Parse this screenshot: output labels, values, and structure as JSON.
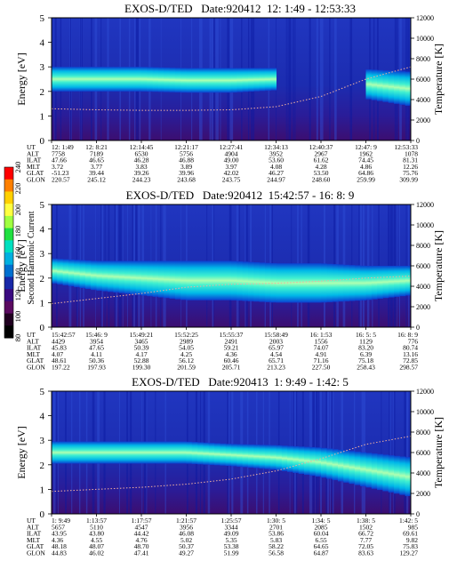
{
  "colorbar": {
    "title": "Second Harmonic Current",
    "ticks": [
      "240",
      "220",
      "200",
      "180",
      "160",
      "140",
      "120",
      "100",
      "80"
    ],
    "colors": [
      "#ff0000",
      "#ff8000",
      "#ffd000",
      "#ffff40",
      "#a0ff40",
      "#20e040",
      "#00e0c0",
      "#00b0e0",
      "#0070d0",
      "#1828a8",
      "#3a0a80",
      "#5a0a60",
      "#200020",
      "#000000"
    ]
  },
  "panels": [
    {
      "title": "EXOS-D/TED   Date:920412  12: 1:49 - 12:53:33",
      "ylabel": "Energy [eV]",
      "y2label": "Temperature [K]",
      "yticks": [
        "5",
        "4",
        "3",
        "2",
        "1",
        "0"
      ],
      "y2ticks": [
        "12000",
        "10000",
        "8000",
        "6000",
        "4000",
        "2000",
        "0"
      ],
      "rowlabels": [
        "UT",
        "ALT",
        "ILAT",
        "MLT",
        "GLAT",
        "GLON"
      ],
      "cols": [
        [
          "12: 1:49",
          "7758",
          "47.66",
          "3.72",
          "-51.23",
          "220.57"
        ],
        [
          "12: 8:21",
          "7189",
          "46.65",
          "3.77",
          "39.44",
          "245.12"
        ],
        [
          "12:14:45",
          "6530",
          "46.28",
          "3.83",
          "39.26",
          "244.23"
        ],
        [
          "12:21:17",
          "5756",
          "46.88",
          "3.89",
          "39.96",
          "243.68"
        ],
        [
          "12:27:41",
          "4904",
          "49.00",
          "3.97",
          "42.02",
          "243.75"
        ],
        [
          "12:34:13",
          "3952",
          "53.60",
          "4.08",
          "46.27",
          "244.97"
        ],
        [
          "12:40:37",
          "2967",
          "61.62",
          "4.28",
          "53.50",
          "248.60"
        ],
        [
          "12:47: 9",
          "1962",
          "74.45",
          "4.86",
          "64.86",
          "259.99"
        ],
        [
          "12:53:33",
          "1078",
          "81.31",
          "12.26",
          "75.76",
          "309.99"
        ]
      ],
      "chart_data": {
        "type": "heatmap",
        "x": [
          "12: 1:49",
          "12: 8:21",
          "12:14:45",
          "12:21:17",
          "12:27:41",
          "12:34:13",
          "12:40:37",
          "12:47: 9",
          "12:53:33"
        ],
        "ylim": [
          0,
          5
        ],
        "y2lim": [
          0,
          12000
        ],
        "band": {
          "center_eV": [
            2.5,
            2.5,
            2.5,
            2.45,
            2.45,
            2.5,
            null,
            2.3,
            2.1
          ],
          "width_eV": [
            1.0,
            1.0,
            1.0,
            1.0,
            1.0,
            0.9,
            0,
            1.2,
            1.4
          ]
        },
        "temperature_K": [
          3100,
          3000,
          2950,
          2950,
          3000,
          3300,
          4300,
          6000,
          7200
        ]
      }
    },
    {
      "title": "EXOS-D/TED   Date:920412  15:42:57 - 16: 8: 9",
      "ylabel": "Energy [eV]",
      "y2label": "Temperature [K]",
      "yticks": [
        "5",
        "4",
        "3",
        "2",
        "1",
        "0"
      ],
      "y2ticks": [
        "12000",
        "10000",
        "8000",
        "6000",
        "4000",
        "2000",
        "0"
      ],
      "rowlabels": [
        "UT",
        "ALT",
        "ILAT",
        "MLT",
        "GLAT",
        "GLON"
      ],
      "cols": [
        [
          "15:42:57",
          "4429",
          "45.83",
          "4.07",
          "48.61",
          "197.22"
        ],
        [
          "15:46: 9",
          "3954",
          "47.65",
          "4.11",
          "50.36",
          "197.93"
        ],
        [
          "15:49:21",
          "3465",
          "50.39",
          "4.17",
          "52.88",
          "199.30"
        ],
        [
          "15:52:25",
          "2989",
          "54.05",
          "4.25",
          "56.12",
          "201.59"
        ],
        [
          "15:55:37",
          "2491",
          "59.21",
          "4.36",
          "60.46",
          "205.71"
        ],
        [
          "15:58:49",
          "2003",
          "65.97",
          "4.54",
          "65.71",
          "213.23"
        ],
        [
          "16: 1:53",
          "1556",
          "74.07",
          "4.91",
          "71.16",
          "227.50"
        ],
        [
          "16: 5: 5",
          "1129",
          "83.20",
          "6.39",
          "75.18",
          "258.43"
        ],
        [
          "16: 8: 9",
          "776",
          "80.74",
          "13.16",
          "72.85",
          "298.57"
        ]
      ],
      "chart_data": {
        "type": "heatmap",
        "x": [
          "15:42:57",
          "15:46: 9",
          "15:49:21",
          "15:52:25",
          "15:55:37",
          "15:58:49",
          "16: 1:53",
          "16: 5: 5",
          "16: 8: 9"
        ],
        "ylim": [
          0,
          5
        ],
        "y2lim": [
          0,
          12000
        ],
        "band": {
          "center_eV": [
            2.3,
            2.1,
            2.0,
            1.9,
            1.9,
            1.8,
            1.8,
            1.8,
            1.9
          ],
          "width_eV": [
            1.0,
            1.2,
            1.4,
            1.6,
            1.6,
            1.6,
            1.6,
            1.4,
            1.2
          ]
        },
        "temperature_K": [
          2300,
          2800,
          3300,
          3900,
          4200,
          4300,
          4500,
          4800,
          5000
        ]
      }
    },
    {
      "title": "EXOS-D/TED   Date:920413  1: 9:49 - 1:42: 5",
      "ylabel": "Energy [eV]",
      "y2label": "Temperature [K]",
      "yticks": [
        "5",
        "4",
        "3",
        "2",
        "1",
        "0"
      ],
      "y2ticks": [
        "12000",
        "10000",
        "8000",
        "6000",
        "4000",
        "2000",
        "0"
      ],
      "rowlabels": [
        "UT",
        "ALT",
        "ILAT",
        "MLT",
        "GLAT",
        "GLON"
      ],
      "cols": [
        [
          "1: 9:49",
          "5657",
          "43.95",
          "4.36",
          "48.18",
          "44.83"
        ],
        [
          "1:13:57",
          "5110",
          "43.80",
          "4.55",
          "48.07",
          "46.02"
        ],
        [
          "1:17:57",
          "4547",
          "44.42",
          "4.76",
          "48.70",
          "47.41"
        ],
        [
          "1:21:57",
          "3956",
          "46.08",
          "5.02",
          "50.37",
          "49.27"
        ],
        [
          "1:25:57",
          "3344",
          "49.09",
          "5.35",
          "53.38",
          "51.99"
        ],
        [
          "1:30: 5",
          "2701",
          "53.86",
          "5.83",
          "58.22",
          "56.58"
        ],
        [
          "1:34: 5",
          "2085",
          "60.04",
          "6.55",
          "64.65",
          "64.87"
        ],
        [
          "1:38: 5",
          "1502",
          "66.72",
          "7.77",
          "72.05",
          "83.63"
        ],
        [
          "1:42: 5",
          "985",
          "69.61",
          "9.82",
          "75.83",
          "129.27"
        ]
      ],
      "chart_data": {
        "type": "heatmap",
        "x": [
          "1: 9:49",
          "1:13:57",
          "1:17:57",
          "1:21:57",
          "1:25:57",
          "1:30: 5",
          "1:34: 5",
          "1:38: 5",
          "1:42: 5"
        ],
        "ylim": [
          0,
          5
        ],
        "y2lim": [
          0,
          12000
        ],
        "band": {
          "center_eV": [
            2.5,
            2.5,
            2.5,
            2.5,
            2.4,
            2.3,
            2.1,
            1.8,
            1.5
          ],
          "width_eV": [
            0.9,
            0.9,
            0.9,
            0.9,
            0.9,
            1.0,
            1.2,
            1.4,
            1.6
          ]
        },
        "temperature_K": [
          2200,
          2400,
          2600,
          2900,
          3400,
          4200,
          5400,
          6800,
          7600
        ]
      }
    }
  ]
}
